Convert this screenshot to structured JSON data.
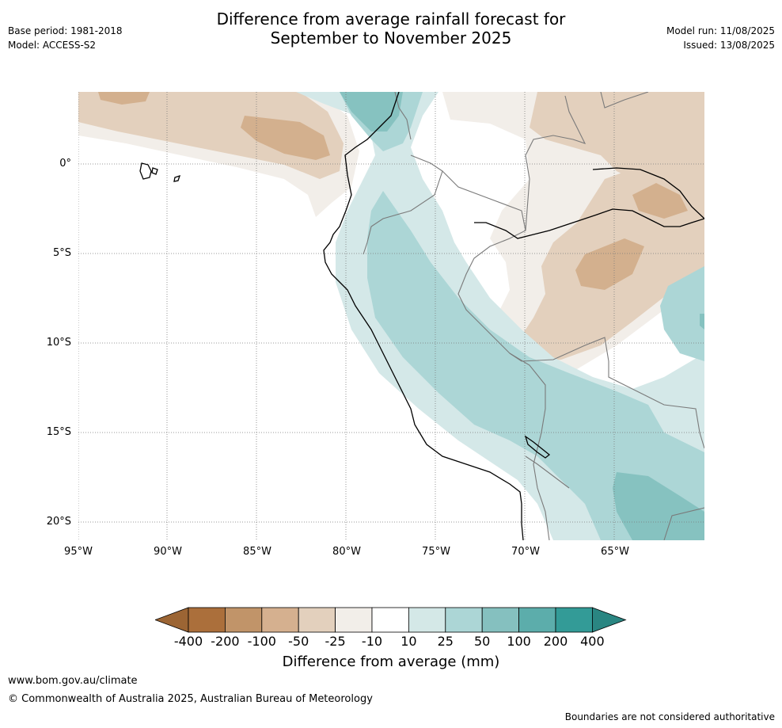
{
  "title": {
    "line1": "Difference from average rainfall forecast for",
    "line2": "September to November 2025"
  },
  "meta_left": {
    "base_period": "Base period: 1981-2018",
    "model": "Model: ACCESS-S2"
  },
  "meta_right": {
    "model_run": "Model run: 11/08/2025",
    "issued": "Issued: 13/08/2025"
  },
  "map": {
    "lat_labels": [
      "0°",
      "5°S",
      "10°S",
      "15°S",
      "20°S"
    ],
    "lon_labels": [
      "95°W",
      "90°W",
      "85°W",
      "80°W",
      "75°W",
      "70°W",
      "65°W"
    ],
    "colors": {
      "brown_dark": "#a86f3a",
      "brown_mid": "#c4966a",
      "brown_light": "#d3b08e",
      "tan": "#e3d0bd",
      "cream": "#f2eee9",
      "white": "#ffffff",
      "teal_pale": "#d4e8e8",
      "teal_light": "#acd6d6",
      "teal_mid": "#86c2c0",
      "teal": "#5cadab",
      "teal_dark": "#339b97"
    }
  },
  "legend": {
    "ticks": [
      "-400",
      "-200",
      "-100",
      "-50",
      "-25",
      "-10",
      "10",
      "25",
      "50",
      "100",
      "200",
      "400"
    ],
    "bins": [
      "#ab6f3b",
      "#c19469",
      "#d5b08f",
      "#e3d0bd",
      "#f2eee9",
      "#ffffff",
      "#d4e8e7",
      "#acd6d6",
      "#85c0bf",
      "#5cadab",
      "#339b97"
    ],
    "low_arrow_color": "#9c6534",
    "high_arrow_color": "#2a8682",
    "title": "Difference from average (mm)"
  },
  "footer": {
    "url": "www.bom.gov.au/climate",
    "copyright": "© Commonwealth of Australia 2025, Australian Bureau of Meteorology",
    "boundaries_note": "Boundaries are not considered authoritative"
  }
}
